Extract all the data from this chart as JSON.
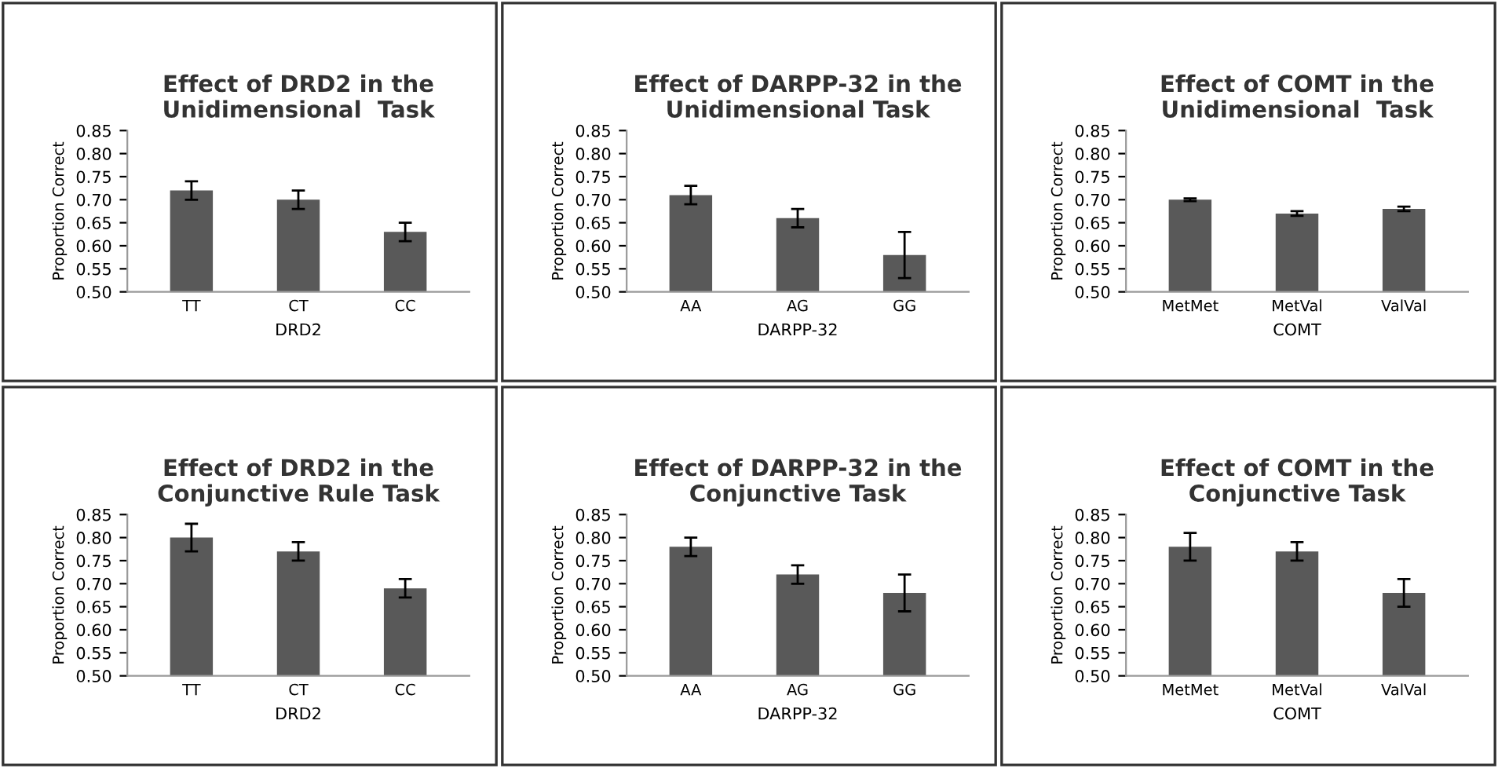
{
  "chart_data": [
    {
      "type": "bar",
      "title": "Effect of DRD2 in the\nUnidimensional  Task",
      "xlabel": "DRD2",
      "ylabel": "Proportion Correct",
      "categories": [
        "TT",
        "CT",
        "CC"
      ],
      "values": [
        0.72,
        0.7,
        0.63
      ],
      "errors": [
        0.02,
        0.02,
        0.02
      ],
      "color": "#595959",
      "ylim": [
        0.5,
        0.85
      ],
      "yticks": [
        {
          "value": 0.5,
          "label": "0.50"
        },
        {
          "value": 0.55,
          "label": "0.55"
        },
        {
          "value": 0.6,
          "label": "0.60"
        },
        {
          "value": 0.65,
          "label": "0.65"
        },
        {
          "value": 0.7,
          "label": "0.70"
        },
        {
          "value": 0.75,
          "label": "0.75"
        },
        {
          "value": 0.8,
          "label": "0.80"
        },
        {
          "value": 0.85,
          "label": "0.85"
        }
      ],
      "grid": false,
      "legend": false
    },
    {
      "type": "bar",
      "title": "Effect of DARPP-32 in the\nUnidimensional Task",
      "xlabel": "DARPP-32",
      "ylabel": "Proportion Correct",
      "categories": [
        "AA",
        "AG",
        "GG"
      ],
      "values": [
        0.71,
        0.66,
        0.58
      ],
      "errors": [
        0.02,
        0.02,
        0.05
      ],
      "color": "#595959",
      "ylim": [
        0.5,
        0.85
      ],
      "yticks": [
        {
          "value": 0.5,
          "label": "0.50"
        },
        {
          "value": 0.55,
          "label": "0.55"
        },
        {
          "value": 0.6,
          "label": "0.60"
        },
        {
          "value": 0.65,
          "label": "0.65"
        },
        {
          "value": 0.7,
          "label": "0.70"
        },
        {
          "value": 0.75,
          "label": "0.75"
        },
        {
          "value": 0.8,
          "label": "0.80"
        },
        {
          "value": 0.85,
          "label": "0.85"
        }
      ],
      "grid": false,
      "legend": false
    },
    {
      "type": "bar",
      "title": "Effect of COMT in the\nUnidimensional  Task",
      "xlabel": "COMT",
      "ylabel": "Proportion Correct",
      "categories": [
        "MetMet",
        "MetVal",
        "ValVal"
      ],
      "values": [
        0.7,
        0.67,
        0.68
      ],
      "errors": [
        0.003,
        0.005,
        0.005
      ],
      "color": "#595959",
      "ylim": [
        0.5,
        0.85
      ],
      "yticks": [
        {
          "value": 0.5,
          "label": "0.50"
        },
        {
          "value": 0.55,
          "label": "0.55"
        },
        {
          "value": 0.6,
          "label": "0.60"
        },
        {
          "value": 0.65,
          "label": "0.65"
        },
        {
          "value": 0.7,
          "label": "0.70"
        },
        {
          "value": 0.75,
          "label": "0.75"
        },
        {
          "value": 0.8,
          "label": "0.80"
        },
        {
          "value": 0.85,
          "label": "0.85"
        }
      ],
      "grid": false,
      "legend": false
    },
    {
      "type": "bar",
      "title": "Effect of DRD2 in the\nConjunctive Rule Task",
      "xlabel": "DRD2",
      "ylabel": "Proportion Correct",
      "categories": [
        "TT",
        "CT",
        "CC"
      ],
      "values": [
        0.8,
        0.77,
        0.69
      ],
      "errors": [
        0.03,
        0.02,
        0.02
      ],
      "color": "#595959",
      "ylim": [
        0.5,
        0.85
      ],
      "yticks": [
        {
          "value": 0.5,
          "label": "0.50"
        },
        {
          "value": 0.55,
          "label": "0.55"
        },
        {
          "value": 0.6,
          "label": "0.60"
        },
        {
          "value": 0.65,
          "label": "0.65"
        },
        {
          "value": 0.7,
          "label": "0.70"
        },
        {
          "value": 0.75,
          "label": "0.75"
        },
        {
          "value": 0.8,
          "label": "0.80"
        },
        {
          "value": 0.85,
          "label": "0.85"
        }
      ],
      "grid": false,
      "legend": false
    },
    {
      "type": "bar",
      "title": "Effect of DARPP-32 in the\nConjunctive Task",
      "xlabel": "DARPP-32",
      "ylabel": "Proportion Correct",
      "categories": [
        "AA",
        "AG",
        "GG"
      ],
      "values": [
        0.78,
        0.72,
        0.68
      ],
      "errors": [
        0.02,
        0.02,
        0.04
      ],
      "color": "#595959",
      "ylim": [
        0.5,
        0.85
      ],
      "yticks": [
        {
          "value": 0.5,
          "label": "0.50"
        },
        {
          "value": 0.55,
          "label": "0.55"
        },
        {
          "value": 0.6,
          "label": "0.60"
        },
        {
          "value": 0.65,
          "label": "0.65"
        },
        {
          "value": 0.7,
          "label": "0.70"
        },
        {
          "value": 0.75,
          "label": "0.75"
        },
        {
          "value": 0.8,
          "label": "0.80"
        },
        {
          "value": 0.85,
          "label": "0.85"
        }
      ],
      "grid": false,
      "legend": false
    },
    {
      "type": "bar",
      "title": "Effect of COMT in the\nConjunctive Task",
      "xlabel": "COMT",
      "ylabel": "Proportion Correct",
      "categories": [
        "MetMet",
        "MetVal",
        "ValVal"
      ],
      "values": [
        0.78,
        0.77,
        0.68
      ],
      "errors": [
        0.03,
        0.02,
        0.03
      ],
      "color": "#595959",
      "ylim": [
        0.5,
        0.85
      ],
      "yticks": [
        {
          "value": 0.5,
          "label": "0.50"
        },
        {
          "value": 0.55,
          "label": "0.55"
        },
        {
          "value": 0.6,
          "label": "0.60"
        },
        {
          "value": 0.65,
          "label": "0.65"
        },
        {
          "value": 0.7,
          "label": "0.70"
        },
        {
          "value": 0.75,
          "label": "0.75"
        },
        {
          "value": 0.8,
          "label": "0.80"
        },
        {
          "value": 0.85,
          "label": "0.85"
        }
      ],
      "grid": false,
      "legend": false
    }
  ]
}
